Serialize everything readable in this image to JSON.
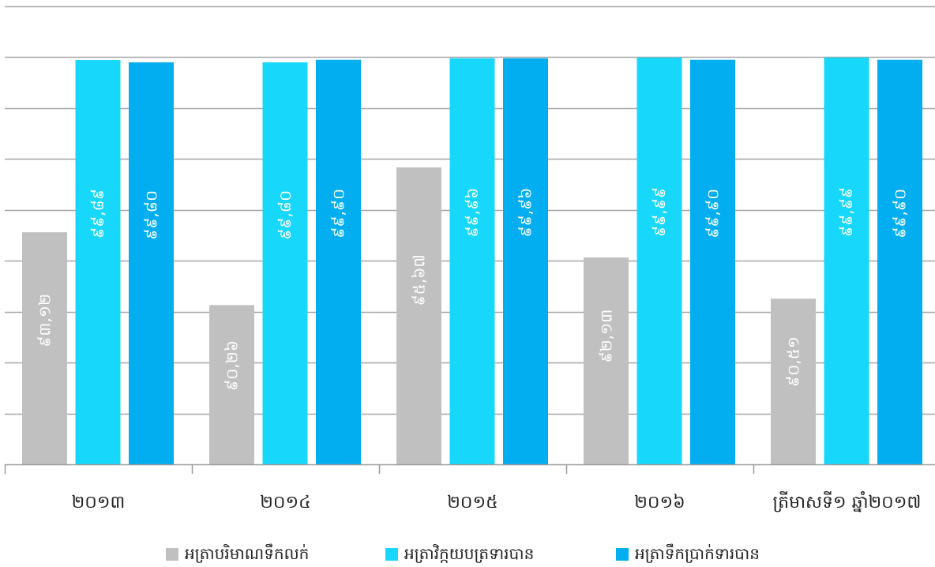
{
  "chart_data": {
    "type": "bar",
    "categories": [
      "២០១៣",
      "២០១៤",
      "២០១៥",
      "២០១៦",
      "ត្រីមាសទី១ ឆ្នាំ២០១៧"
    ],
    "series": [
      {
        "name": "អត្រាបរិមាណទឹកលក់",
        "color": "#c0c0c0",
        "values": [
          93.12,
          90.26,
          95.67,
          92.13,
          90.51
        ],
        "labels": [
          "៩៣,១២",
          "៩០,២៦",
          "៩៥,៦៧",
          "៩២,១៣",
          "៩០,៥១"
        ]
      },
      {
        "name": "អត្រាវិក្កយបត្រទារបាន",
        "color": "#17d7fa",
        "values": [
          99.89,
          99.8,
          99.96,
          99.99,
          99.99
        ],
        "labels": [
          "៩៩,៨៩",
          "៩៩,៨០",
          "៩៩,៩៦",
          "៩៩,៩៩",
          "៩៩,៩៩"
        ]
      },
      {
        "name": "អត្រាទឹកប្រាក់ទារបាន",
        "color": "#02aeef",
        "values": [
          99.8,
          99.9,
          99.96,
          99.9,
          99.9
        ],
        "labels": [
          "៩៩,៨០",
          "៩៩,៩០",
          "៩៩,៩៦",
          "៩៩,៩០",
          "៩៩,៩០"
        ]
      }
    ],
    "ylim": [
      84,
      102
    ],
    "grid": true,
    "legend_position": "bottom"
  }
}
